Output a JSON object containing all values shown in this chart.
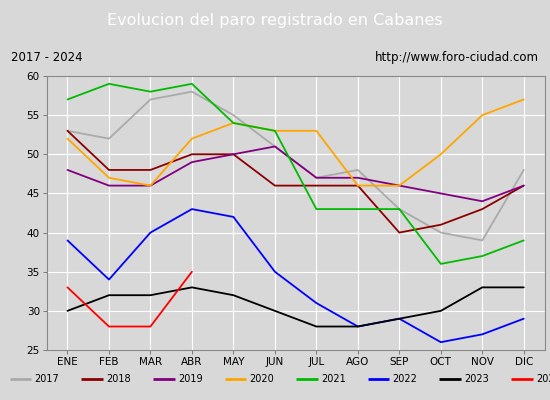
{
  "title": "Evolucion del paro registrado en Cabanes",
  "subtitle_left": "2017 - 2024",
  "subtitle_right": "http://www.foro-ciudad.com",
  "months": [
    "ENE",
    "FEB",
    "MAR",
    "ABR",
    "MAY",
    "JUN",
    "JUL",
    "AGO",
    "SEP",
    "OCT",
    "NOV",
    "DIC"
  ],
  "ylim": [
    25,
    60
  ],
  "yticks": [
    25,
    30,
    35,
    40,
    45,
    50,
    55,
    60
  ],
  "series": {
    "2017": {
      "color": "#aaaaaa",
      "values": [
        53,
        52,
        57,
        58,
        55,
        51,
        47,
        48,
        43,
        40,
        39,
        48
      ]
    },
    "2018": {
      "color": "#8b0000",
      "values": [
        53,
        48,
        48,
        50,
        50,
        46,
        46,
        46,
        40,
        41,
        43,
        46
      ]
    },
    "2019": {
      "color": "#800080",
      "values": [
        48,
        46,
        46,
        49,
        50,
        51,
        47,
        47,
        46,
        45,
        44,
        46
      ]
    },
    "2020": {
      "color": "#ffa500",
      "values": [
        52,
        47,
        46,
        52,
        54,
        53,
        53,
        46,
        46,
        50,
        55,
        57
      ]
    },
    "2021": {
      "color": "#00bb00",
      "values": [
        57,
        59,
        58,
        59,
        54,
        53,
        43,
        43,
        43,
        36,
        37,
        39
      ]
    },
    "2022": {
      "color": "#0000ff",
      "values": [
        39,
        34,
        40,
        43,
        42,
        35,
        31,
        28,
        29,
        26,
        27,
        29
      ]
    },
    "2023": {
      "color": "#000000",
      "values": [
        30,
        32,
        32,
        33,
        32,
        30,
        28,
        28,
        29,
        30,
        33,
        33
      ]
    },
    "2024": {
      "color": "#ff0000",
      "values": [
        33,
        28,
        28,
        35,
        null,
        null,
        null,
        null,
        null,
        null,
        null,
        null
      ]
    }
  },
  "background_color": "#d8d8d8",
  "plot_bg_color": "#d8d8d8",
  "title_bg_color": "#4a6fa8",
  "title_color": "#ffffff",
  "grid_color": "#ffffff",
  "subtitle_bg_color": "#f0f0f0",
  "border_color": "#888888"
}
